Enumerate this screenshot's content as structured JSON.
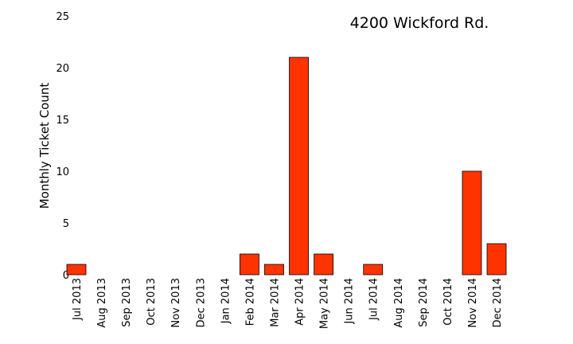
{
  "chart_data": {
    "type": "bar",
    "title": "4200 Wickford Rd.",
    "xlabel": "",
    "ylabel": "Monthly Ticket Count",
    "categories": [
      "Jul 2013",
      "Aug 2013",
      "Sep 2013",
      "Oct 2013",
      "Nov 2013",
      "Dec 2013",
      "Jan 2014",
      "Feb 2014",
      "Mar 2014",
      "Apr 2014",
      "May 2014",
      "Jun 2014",
      "Jul 2014",
      "Aug 2014",
      "Sep 2014",
      "Oct 2014",
      "Nov 2014",
      "Dec 2014"
    ],
    "values": [
      1,
      0,
      0,
      0,
      0,
      0,
      0,
      2,
      1,
      21,
      2,
      0,
      1,
      0,
      0,
      0,
      10,
      3
    ],
    "ylim": [
      0,
      25
    ],
    "yticks": [
      0,
      5,
      10,
      15,
      20,
      25
    ],
    "grid": false,
    "bar_color": "#ff3300",
    "bar_edge_color": "#000000"
  }
}
